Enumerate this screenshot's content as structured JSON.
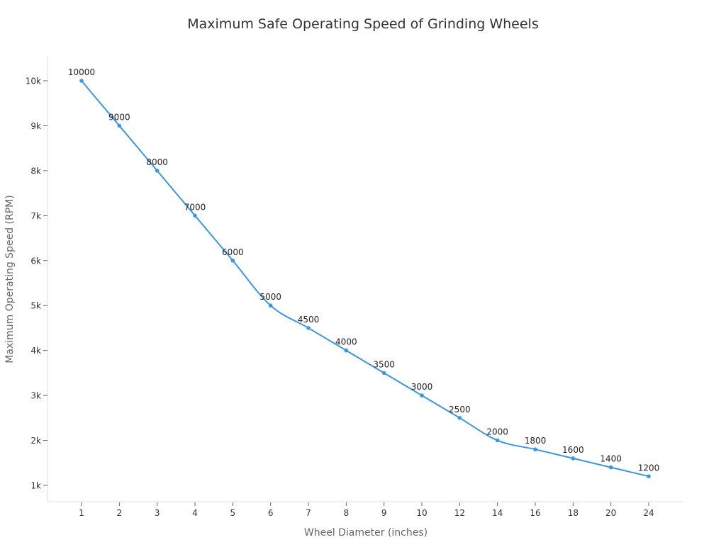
{
  "chart_data": {
    "type": "line",
    "title": "Maximum Safe Operating Speed of Grinding Wheels",
    "xlabel": "Wheel Diameter (inches)",
    "ylabel": "Maximum Operating Speed (RPM)",
    "categories": [
      "1",
      "2",
      "3",
      "4",
      "5",
      "6",
      "7",
      "8",
      "9",
      "10",
      "12",
      "14",
      "16",
      "18",
      "20",
      "24"
    ],
    "values": [
      10000,
      9000,
      8000,
      7000,
      6000,
      5000,
      4500,
      4000,
      3500,
      3000,
      2500,
      2000,
      1800,
      1600,
      1400,
      1200
    ],
    "data_labels": [
      "10000",
      "9000",
      "8000",
      "7000",
      "6000",
      "5000",
      "4500",
      "4000",
      "3500",
      "3000",
      "2500",
      "2000",
      "1800",
      "1600",
      "1400",
      "1200"
    ],
    "ylim": [
      637,
      10536
    ],
    "yticks": [
      1000,
      2000,
      3000,
      4000,
      5000,
      6000,
      7000,
      8000,
      9000,
      10000
    ],
    "ytick_labels": [
      "1k",
      "2k",
      "3k",
      "4k",
      "5k",
      "6k",
      "7k",
      "8k",
      "9k",
      "10k"
    ],
    "grid": false,
    "line_color": "#3b96e6",
    "smooth": true
  }
}
